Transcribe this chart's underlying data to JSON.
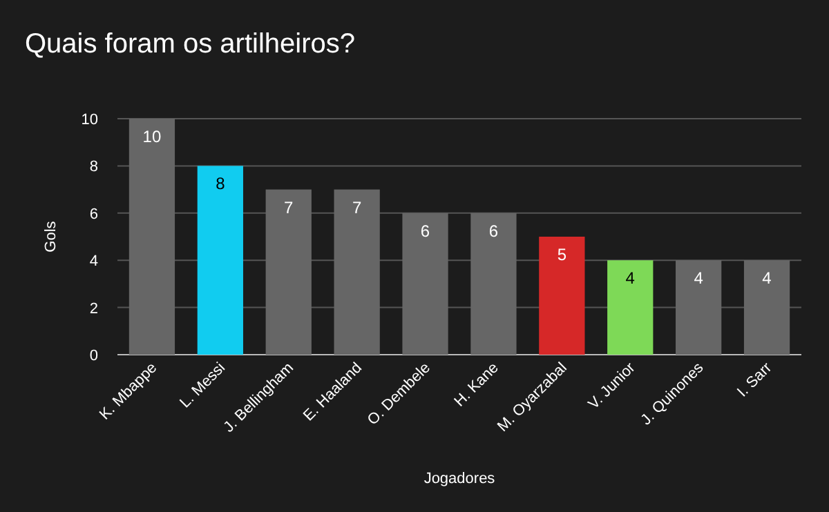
{
  "chart_data": {
    "type": "bar",
    "title": "Quais foram os artilheiros?",
    "xlabel": "Jogadores",
    "ylabel": "Gols",
    "categories": [
      "K. Mbappe",
      "L. Messi",
      "J. Bellingham",
      "E. Haaland",
      "O. Dembele",
      "H. Kane",
      "M. Oyarzabal",
      "V. Junior",
      "J. Quinones",
      "I. Sarr"
    ],
    "values": [
      10,
      8,
      7,
      7,
      6,
      6,
      5,
      4,
      4,
      4
    ],
    "colors": [
      "#666666",
      "#11ccf0",
      "#666666",
      "#666666",
      "#666666",
      "#666666",
      "#d62828",
      "#7ed957",
      "#666666",
      "#666666"
    ],
    "ylim": [
      0,
      10
    ],
    "yticks": [
      0,
      2,
      4,
      6,
      8,
      10
    ],
    "grid": "y",
    "data_labels": true
  }
}
